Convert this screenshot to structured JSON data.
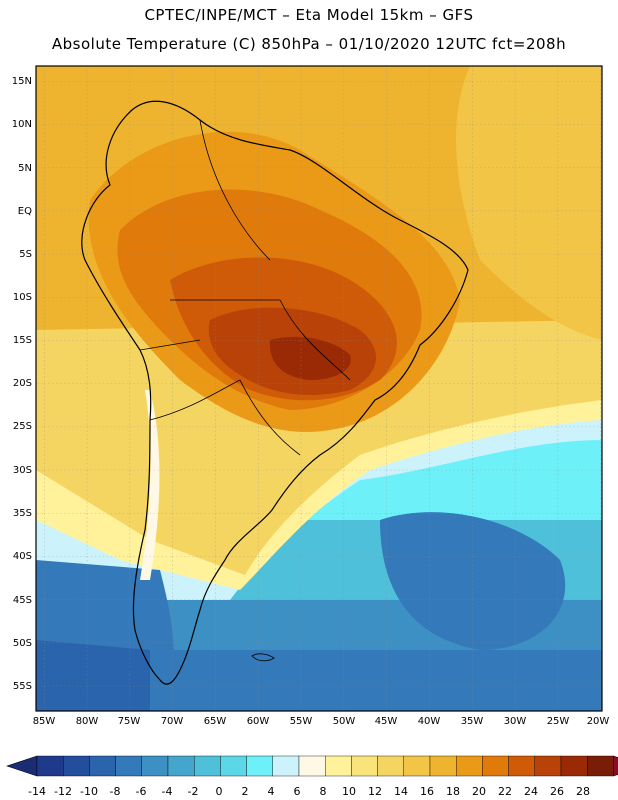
{
  "header": {
    "line1": "CPTEC/INPE/MCT –  Eta Model 15km – GFS",
    "line2": "Absolute Temperature (C) 850hPa – 01/10/2020 12UTC fct=208h"
  },
  "axes": {
    "lat_labels": [
      "15N",
      "10N",
      "5N",
      "EQ",
      "5S",
      "10S",
      "15S",
      "20S",
      "25S",
      "30S",
      "35S",
      "40S",
      "45S",
      "50S",
      "55S"
    ],
    "lon_labels": [
      "85W",
      "80W",
      "75W",
      "70W",
      "65W",
      "60W",
      "55W",
      "50W",
      "45W",
      "40W",
      "35W",
      "30W",
      "25W",
      "20W"
    ]
  },
  "colorbar": {
    "labels": [
      "-14",
      "-12",
      "-10",
      "-8",
      "-6",
      "-4",
      "-2",
      "0",
      "2",
      "4",
      "6",
      "8",
      "10",
      "12",
      "14",
      "16",
      "18",
      "20",
      "22",
      "24",
      "26",
      "28"
    ],
    "colors": [
      "#1f3a8c",
      "#234e9e",
      "#2a64ad",
      "#3479b9",
      "#3d90c4",
      "#45a6cd",
      "#4fc0da",
      "#5cd7e8",
      "#6ef0f8",
      "#ccf3fb",
      "#fff8e5",
      "#fff29b",
      "#f9e37b",
      "#f5d562",
      "#f2c547",
      "#efb42f",
      "#eb9a18",
      "#e07a0a",
      "#cf5a07",
      "#b84208",
      "#9a2a06",
      "#7a1d08"
    ],
    "under_color": "#1b2c74",
    "over_color": "#8a0a2a"
  }
}
